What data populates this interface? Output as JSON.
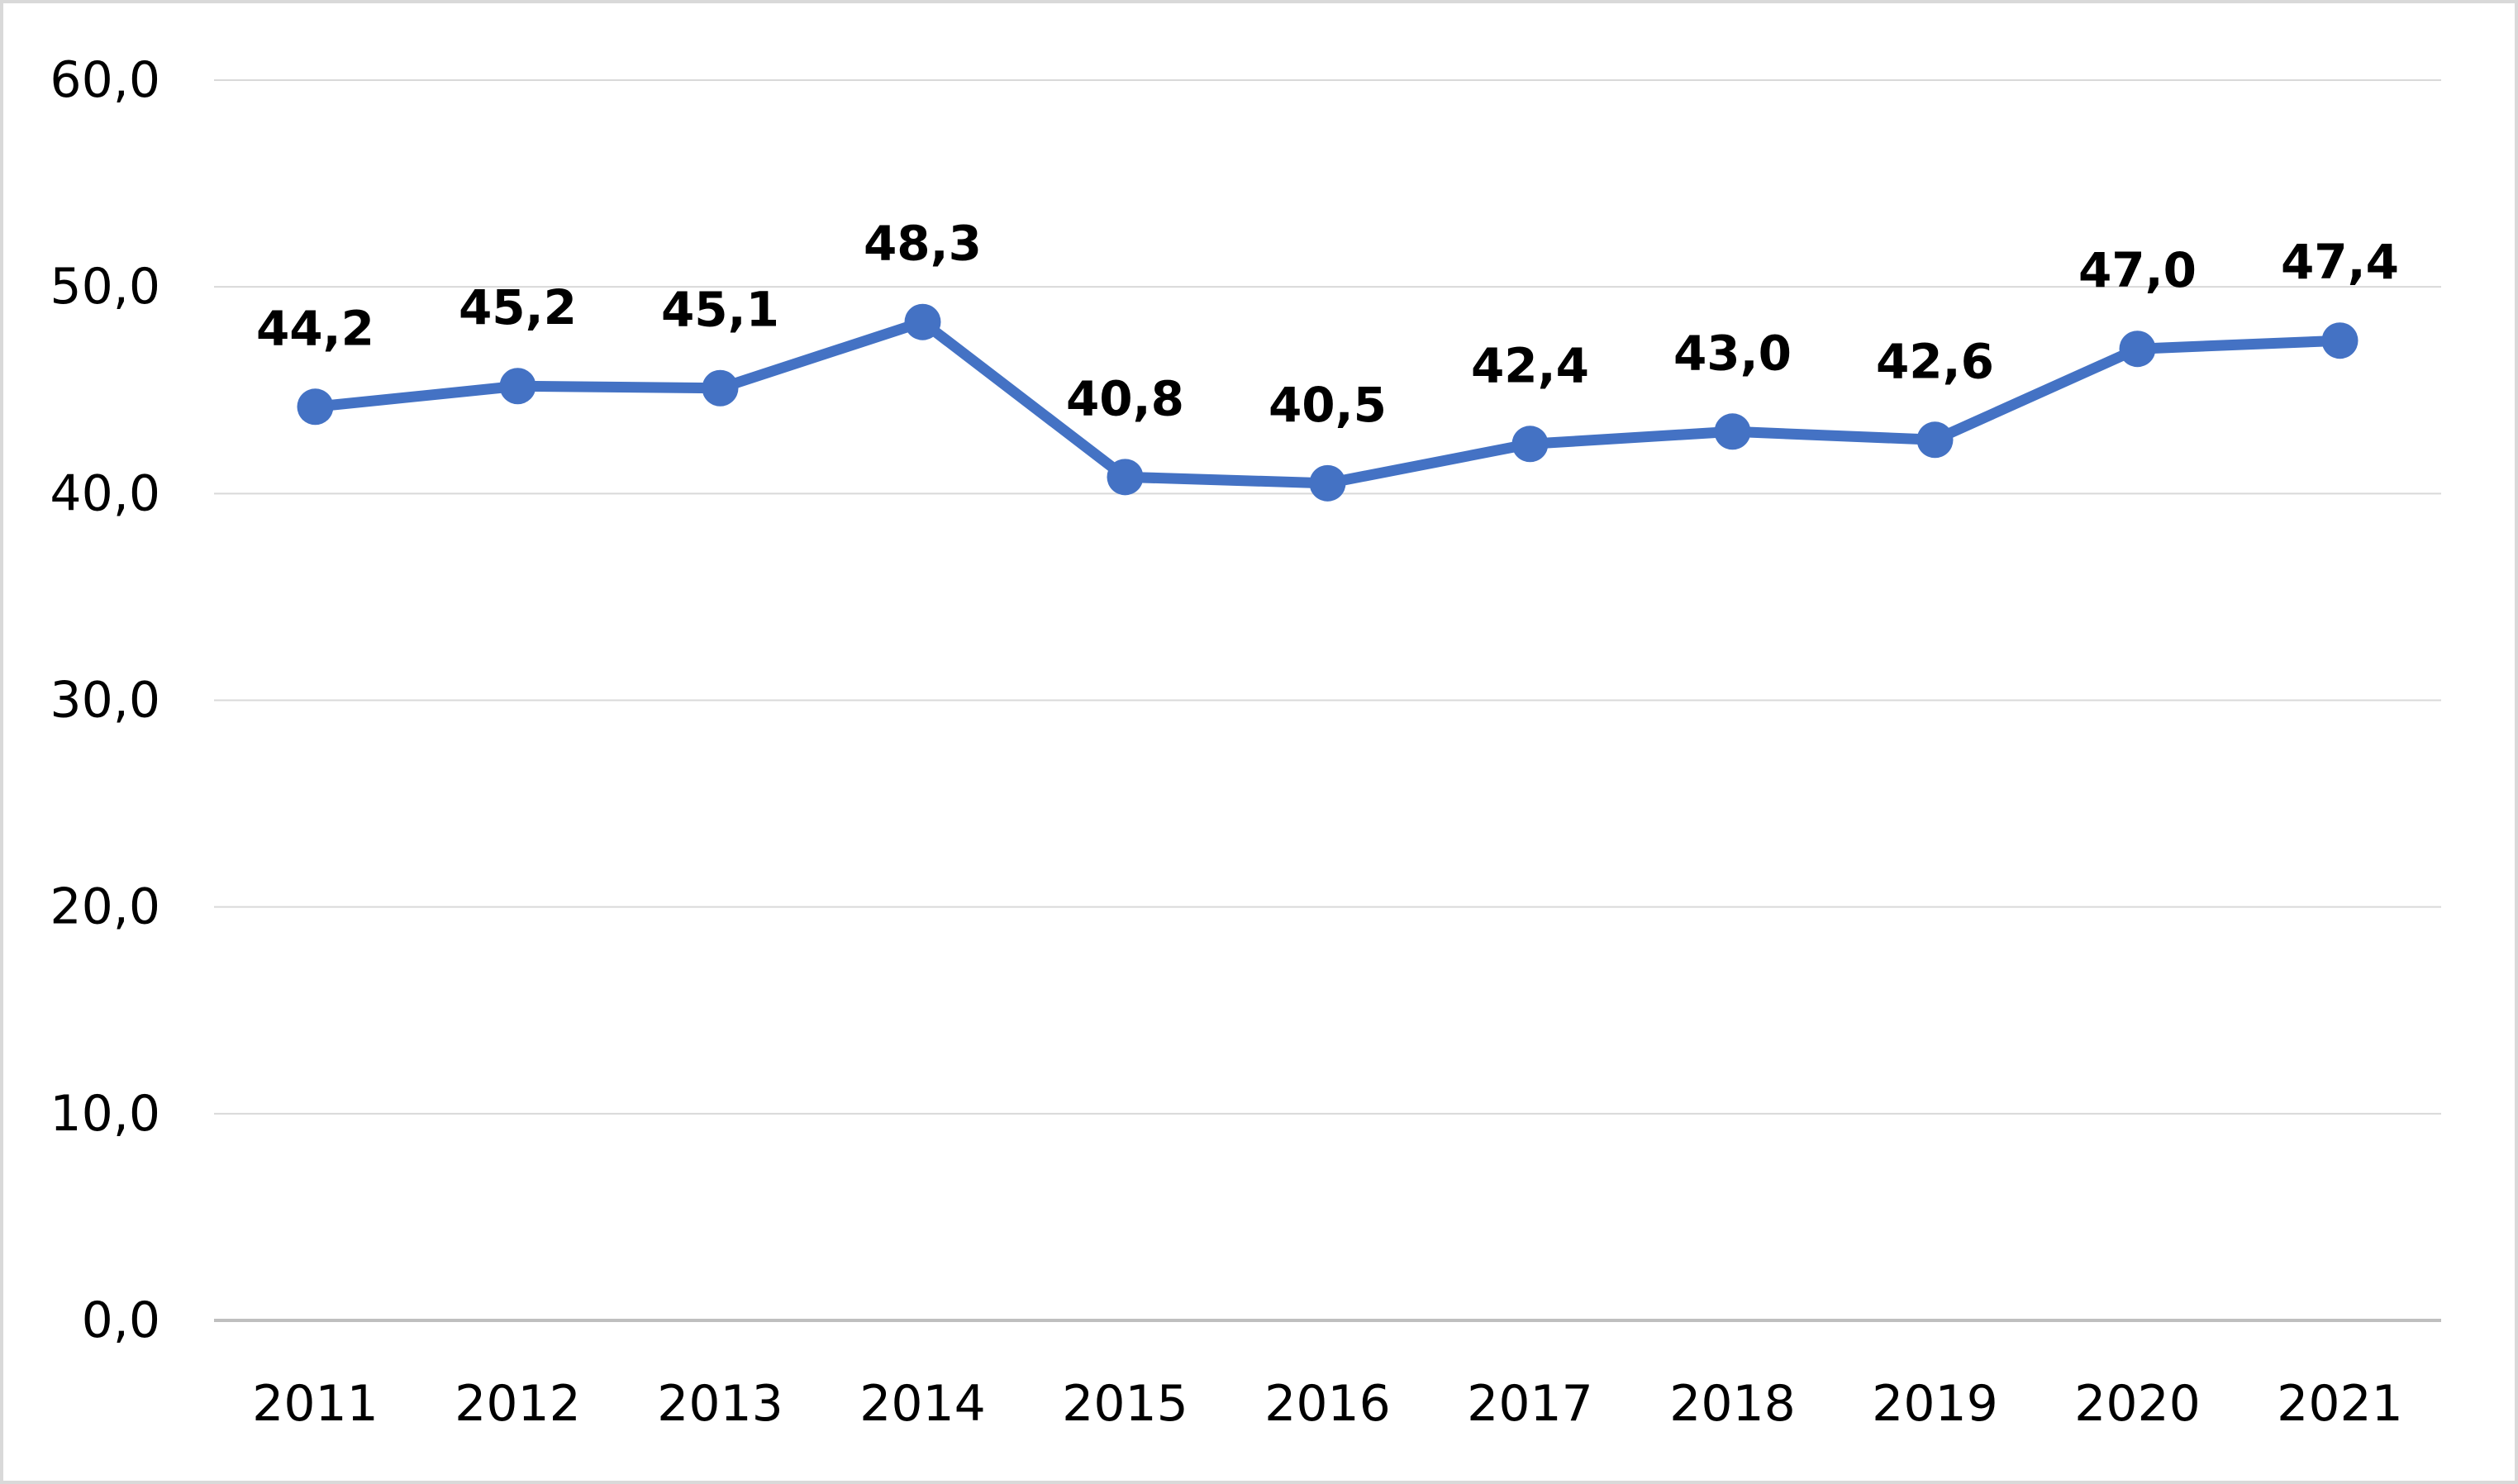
{
  "chart_data": {
    "type": "line",
    "title": "",
    "xlabel": "",
    "ylabel": "",
    "categories": [
      "2011",
      "2012",
      "2013",
      "2014",
      "2015",
      "2016",
      "2017",
      "2018",
      "2019",
      "2020",
      "2021"
    ],
    "series": [
      {
        "values": [
          44.2,
          45.2,
          45.1,
          48.3,
          40.8,
          40.5,
          42.4,
          43.0,
          42.6,
          47.0,
          47.4
        ],
        "data_labels": [
          "44,2",
          "45,2",
          "45,1",
          "48,3",
          "40,8",
          "40,5",
          "42,4",
          "43,0",
          "42,6",
          "47,0",
          "47,4"
        ],
        "color": "#4472c4",
        "marker": "circle"
      }
    ],
    "ylim": [
      0,
      60
    ],
    "y_ticks": [
      0,
      10,
      20,
      30,
      40,
      50,
      60
    ],
    "y_tick_labels": [
      "0,0",
      "10,0",
      "20,0",
      "30,0",
      "40,0",
      "50,0",
      "60,0"
    ],
    "grid": "horizontal",
    "legend": "none",
    "colors": {
      "line": "#4472c4",
      "gridline": "#d9d9d9",
      "axis": "#bfbfbf",
      "frame": "#d9d9d9"
    }
  }
}
